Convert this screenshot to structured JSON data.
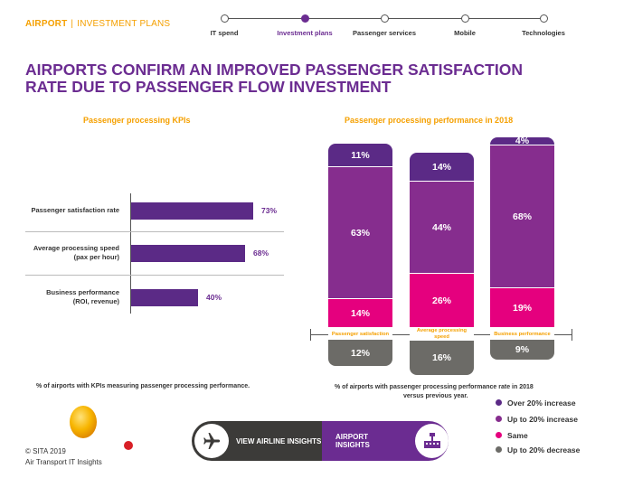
{
  "header": {
    "brand": "AIRPORT",
    "separator": "|",
    "section": "INVESTMENT PLANS",
    "nav": [
      "IT spend",
      "Investment plans",
      "Passenger services",
      "Mobile",
      "Technologies"
    ],
    "nav_active_index": 1
  },
  "title_line1": "AIRPORTS CONFIRM AN IMPROVED PASSENGER SATISFACTION",
  "title_line2": "RATE DUE TO PASSENGER FLOW INVESTMENT",
  "chart_data": [
    {
      "type": "bar",
      "orientation": "horizontal",
      "title": "Passenger processing KPIs",
      "categories": [
        "Passenger satisfaction rate",
        "Average processing speed (pax per hour)",
        "Business performance (ROI, revenue)"
      ],
      "category_lines": [
        [
          "Passenger satisfaction rate"
        ],
        [
          "Average processing speed",
          "(pax per hour)"
        ],
        [
          "Business performance",
          "(ROI, revenue)"
        ]
      ],
      "values": [
        73,
        68,
        40
      ],
      "value_labels": [
        "73%",
        "68%",
        "40%"
      ],
      "unit": "%",
      "note": "% of airports with KPIs measuring passenger processing performance.",
      "color": "#5b2a86"
    },
    {
      "type": "bar",
      "stacked": true,
      "title": "Passenger processing performance in 2018",
      "categories": [
        "Passenger satisfaction",
        "Average processing speed",
        "Business performance"
      ],
      "category_lines": [
        [
          "Passenger satisfaction"
        ],
        [
          "Average processing",
          "speed"
        ],
        [
          "Business performance"
        ]
      ],
      "series": [
        {
          "name": "Over 20% increase",
          "color": "#5b2a86",
          "values": [
            11,
            14,
            4
          ]
        },
        {
          "name": "Up to 20% increase",
          "color": "#862d8e",
          "values": [
            63,
            44,
            68
          ]
        },
        {
          "name": "Same",
          "color": "#e5007e",
          "values": [
            14,
            26,
            19
          ]
        },
        {
          "name": "Up to 20% decrease",
          "color": "#6c6b67",
          "values": [
            12,
            16,
            9
          ]
        }
      ],
      "value_labels": [
        [
          "11%",
          "63%",
          "14%",
          "12%"
        ],
        [
          "14%",
          "44%",
          "26%",
          "16%"
        ],
        [
          "4%",
          "68%",
          "19%",
          "9%"
        ]
      ],
      "unit": "%",
      "note_line1": "% of airports with passenger processing performance rate in 2018",
      "note_line2": "versus previous year."
    }
  ],
  "footer": {
    "copyright": "© SITA 2019",
    "org": "Air Transport IT Insights",
    "view_airline": "VIEW AIRLINE INSIGHTS",
    "airport_insights": "AIRPORT INSIGHTS",
    "colors": {
      "dark": "#3c3b39",
      "purple": "#6b2c91",
      "orange": "#f5a000"
    }
  }
}
